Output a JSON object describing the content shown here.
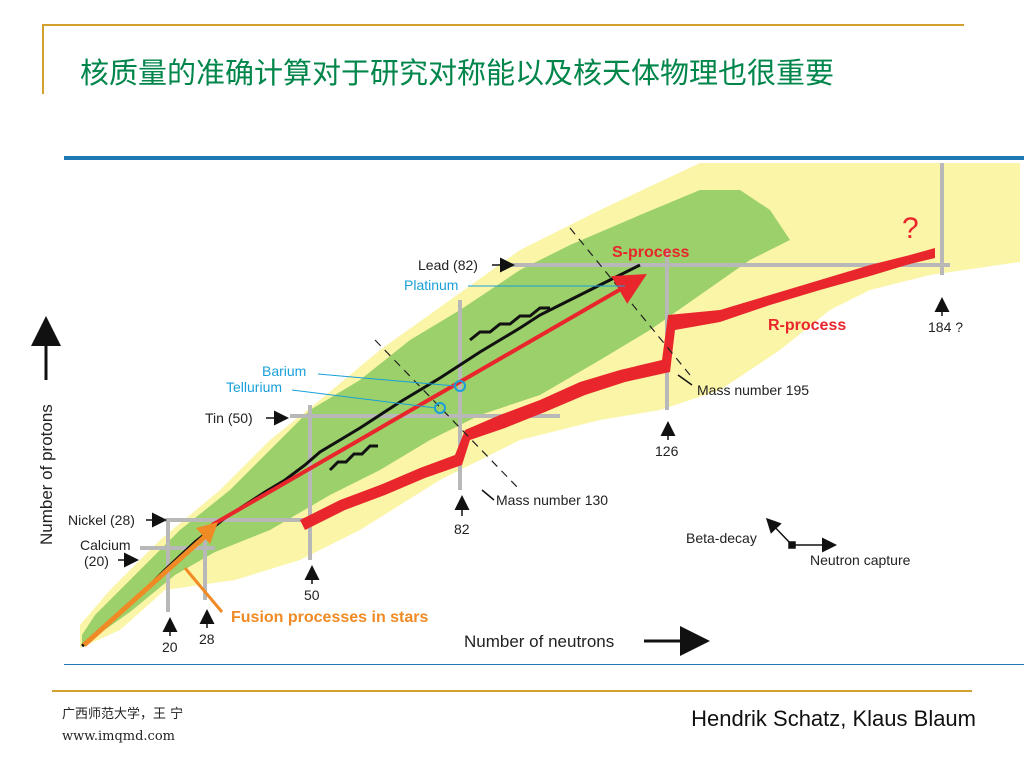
{
  "slide": {
    "title": "核质量的准确计算对于研究对称能以及核天体物理也很重要"
  },
  "diagram": {
    "labels": {
      "lead": "Lead (82)",
      "platinum": "Platinum",
      "barium": "Barium",
      "tellurium": "Tellurium",
      "tin": "Tin (50)",
      "nickel": "Nickel (28)",
      "calcium": "Calcium",
      "calcium_num": "(20)",
      "n20": "20",
      "n28": "28",
      "n50": "50",
      "n82": "82",
      "n126": "126",
      "n184": "184 ?",
      "s_process": "S-process",
      "r_process": "R-process",
      "question": "?",
      "mass195": "Mass number 195",
      "mass130": "Mass number 130",
      "fusion": "Fusion processes in stars",
      "beta_decay": "Beta-decay",
      "neutron_capture": "Neutron capture",
      "y_axis": "Number of protons",
      "x_axis": "Number of neutrons"
    },
    "colors": {
      "stable_band": "#9bd06a",
      "known_region": "#fbf5a8",
      "r_process": "#e8262c",
      "fusion": "#f08a24",
      "label_blue": "#1a9fd9",
      "grid": "#b8b8b8"
    }
  },
  "footer": {
    "left_line1": "广西师范大学，王 宁",
    "left_line2": "www.imqmd.com",
    "right": "Hendrik Schatz, Klaus Blaum"
  }
}
